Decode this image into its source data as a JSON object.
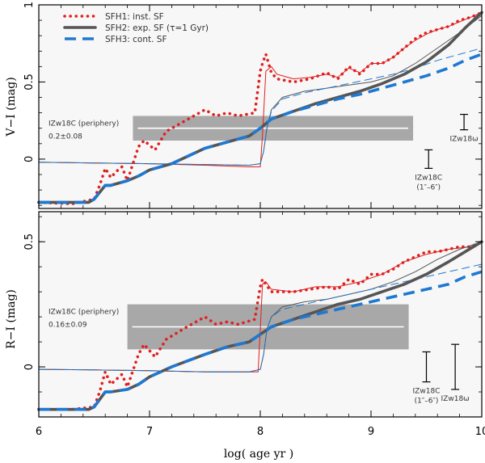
{
  "chart_data": [
    {
      "type": "line",
      "panel": "top",
      "ylabel": "V−I (mag)",
      "xlim": [
        6,
        10
      ],
      "ylim": [
        -0.32,
        1.0
      ],
      "yticks": [
        0,
        0.5,
        1
      ],
      "ytick_labels": [
        "0",
        "0.5",
        "1"
      ],
      "legend": [
        {
          "key": "sfh1",
          "label": "SFH1: inst. SF",
          "color": "#e02020",
          "style": "dotted"
        },
        {
          "key": "sfh2",
          "label": "SFH2: exp. SF (τ=1 Gyr)",
          "color": "#555555",
          "style": "solid"
        },
        {
          "key": "sfh3",
          "label": "SFH3: cont. SF",
          "color": "#1f78d1",
          "style": "dashed"
        }
      ],
      "band": {
        "x": [
          6.85,
          9.38
        ],
        "y": [
          0.12,
          0.28
        ],
        "center": 0.2
      },
      "band_text": [
        "IZw18C (periphery)",
        "0.2±0.08"
      ],
      "errorbars": [
        {
          "label": [
            "IZw18ω"
          ],
          "x": 9.84,
          "y": 0.24,
          "err": 0.05
        },
        {
          "label": [
            "IZw18C",
            "(1″–6″)"
          ],
          "x": 9.52,
          "y": 0.0,
          "err": 0.06
        }
      ],
      "series": [
        {
          "key": "sfh1",
          "color": "#e02020",
          "style": "dots",
          "x": [
            6.0,
            6.3,
            6.5,
            6.55,
            6.6,
            6.65,
            6.7,
            6.75,
            6.8,
            6.9,
            6.95,
            7.05,
            7.15,
            7.3,
            7.5,
            7.6,
            7.7,
            7.8,
            7.95,
            8.0,
            8.02,
            8.05,
            8.1,
            8.15,
            8.3,
            8.45,
            8.6,
            8.7,
            8.8,
            8.9,
            9.0,
            9.1,
            9.2,
            9.3,
            9.4,
            9.5,
            9.6,
            9.7,
            9.8,
            9.9,
            10.0
          ],
          "y": [
            -0.28,
            -0.29,
            -0.26,
            -0.17,
            -0.06,
            -0.12,
            -0.08,
            -0.05,
            -0.14,
            0.08,
            0.12,
            0.06,
            0.18,
            0.24,
            0.32,
            0.28,
            0.3,
            0.28,
            0.3,
            0.57,
            0.62,
            0.68,
            0.56,
            0.52,
            0.5,
            0.52,
            0.56,
            0.52,
            0.6,
            0.55,
            0.62,
            0.62,
            0.66,
            0.72,
            0.78,
            0.82,
            0.84,
            0.86,
            0.9,
            0.92,
            0.95
          ]
        },
        {
          "key": "sfh1_inst",
          "color": "#e02020",
          "style": "thin",
          "x": [
            6.0,
            6.5,
            7.0,
            7.5,
            7.9,
            8.0,
            8.02,
            8.05,
            8.1,
            8.15,
            8.3,
            8.45,
            8.6,
            8.7,
            8.8,
            8.9,
            9.0,
            9.1,
            9.2,
            9.3,
            9.4,
            9.5,
            9.6,
            9.7,
            9.8,
            9.9,
            10.0
          ],
          "y": [
            -0.02,
            -0.025,
            -0.03,
            -0.04,
            -0.05,
            -0.05,
            0.15,
            0.57,
            0.6,
            0.55,
            0.52,
            0.53,
            0.55,
            0.53,
            0.59,
            0.56,
            0.62,
            0.62,
            0.66,
            0.72,
            0.77,
            0.81,
            0.84,
            0.86,
            0.89,
            0.92,
            0.95
          ]
        },
        {
          "key": "sfh2_thin",
          "color": "#555555",
          "style": "thin",
          "x": [
            6.0,
            6.5,
            7.0,
            7.5,
            7.9,
            8.0,
            8.03,
            8.06,
            8.1,
            8.2,
            8.4,
            8.6,
            8.8,
            9.0,
            9.2,
            9.4,
            9.6,
            9.8,
            10.0
          ],
          "y": [
            -0.02,
            -0.025,
            -0.03,
            -0.035,
            -0.04,
            -0.03,
            0.05,
            0.2,
            0.32,
            0.4,
            0.44,
            0.46,
            0.48,
            0.5,
            0.54,
            0.62,
            0.72,
            0.82,
            0.93
          ]
        },
        {
          "key": "sfh3_thin",
          "color": "#1f78d1",
          "style": "thindash",
          "x": [
            6.0,
            6.5,
            7.0,
            7.5,
            7.9,
            8.0,
            8.03,
            8.06,
            8.1,
            8.2,
            8.4,
            8.6,
            8.8,
            9.0,
            9.2,
            9.4,
            9.6,
            9.8,
            10.0
          ],
          "y": [
            -0.02,
            -0.025,
            -0.03,
            -0.035,
            -0.04,
            -0.03,
            0.05,
            0.2,
            0.31,
            0.39,
            0.43,
            0.46,
            0.49,
            0.52,
            0.55,
            0.59,
            0.64,
            0.68,
            0.72
          ]
        },
        {
          "key": "sfh2",
          "color": "#555555",
          "style": "thick",
          "x": [
            6.0,
            6.45,
            6.5,
            6.6,
            6.65,
            6.8,
            6.9,
            7.0,
            7.2,
            7.5,
            7.7,
            7.9,
            8.0,
            8.1,
            8.3,
            8.5,
            8.7,
            8.9,
            9.1,
            9.3,
            9.5,
            9.7,
            9.85,
            10.0
          ],
          "y": [
            -0.28,
            -0.28,
            -0.26,
            -0.17,
            -0.17,
            -0.14,
            -0.11,
            -0.07,
            -0.03,
            0.07,
            0.11,
            0.15,
            0.2,
            0.26,
            0.31,
            0.36,
            0.4,
            0.44,
            0.49,
            0.55,
            0.63,
            0.74,
            0.85,
            0.95
          ]
        },
        {
          "key": "sfh3",
          "color": "#1f78d1",
          "style": "thickdash",
          "x": [
            6.0,
            6.45,
            6.5,
            6.6,
            6.65,
            6.8,
            6.9,
            7.0,
            7.2,
            7.5,
            7.7,
            7.9,
            8.0,
            8.1,
            8.3,
            8.5,
            8.7,
            8.9,
            9.1,
            9.3,
            9.5,
            9.7,
            9.85,
            10.0
          ],
          "y": [
            -0.28,
            -0.28,
            -0.26,
            -0.17,
            -0.17,
            -0.14,
            -0.11,
            -0.07,
            -0.03,
            0.07,
            0.11,
            0.15,
            0.2,
            0.26,
            0.31,
            0.35,
            0.39,
            0.42,
            0.46,
            0.5,
            0.54,
            0.59,
            0.64,
            0.68
          ]
        }
      ]
    },
    {
      "type": "line",
      "panel": "bottom",
      "xlabel": "log( age yr )",
      "ylabel": "R−I (mag)",
      "xlim": [
        6,
        10
      ],
      "ylim": [
        -0.2,
        0.62
      ],
      "xticks": [
        6,
        7,
        8,
        9,
        10
      ],
      "xtick_labels": [
        "6",
        "7",
        "8",
        "9",
        "10"
      ],
      "yticks": [
        0,
        0.5
      ],
      "ytick_labels": [
        "0",
        "0.5"
      ],
      "band": {
        "x": [
          6.8,
          9.34
        ],
        "y": [
          0.07,
          0.25
        ],
        "center": 0.16
      },
      "band_text": [
        "IZw18C (periphery)",
        "0.16±0.09"
      ],
      "errorbars": [
        {
          "label": [
            "IZw18C",
            "(1″–6″)"
          ],
          "x": 9.5,
          "y": 0.0,
          "err": 0.06
        },
        {
          "label": [
            "IZw18ω"
          ],
          "x": 9.76,
          "y": 0.0,
          "err": 0.09
        }
      ],
      "series": [
        {
          "key": "sfh1",
          "color": "#e02020",
          "style": "dots",
          "x": [
            6.0,
            6.3,
            6.5,
            6.55,
            6.6,
            6.65,
            6.7,
            6.75,
            6.8,
            6.9,
            6.95,
            7.05,
            7.15,
            7.3,
            7.5,
            7.6,
            7.7,
            7.8,
            7.95,
            8.0,
            8.02,
            8.05,
            8.1,
            8.15,
            8.3,
            8.45,
            8.6,
            8.7,
            8.8,
            8.9,
            9.0,
            9.1,
            9.2,
            9.3,
            9.4,
            9.5,
            9.6,
            9.7,
            9.8,
            9.9,
            10.0
          ],
          "y": [
            -0.17,
            -0.17,
            -0.16,
            -0.1,
            -0.02,
            -0.07,
            -0.05,
            -0.03,
            -0.08,
            0.05,
            0.09,
            0.04,
            0.11,
            0.15,
            0.2,
            0.17,
            0.18,
            0.17,
            0.19,
            0.32,
            0.35,
            0.33,
            0.3,
            0.3,
            0.3,
            0.31,
            0.32,
            0.31,
            0.35,
            0.33,
            0.37,
            0.37,
            0.39,
            0.42,
            0.44,
            0.46,
            0.46,
            0.47,
            0.48,
            0.48,
            0.5
          ]
        },
        {
          "key": "sfh1_inst",
          "color": "#e02020",
          "style": "thin",
          "x": [
            6.0,
            6.5,
            7.0,
            7.5,
            7.9,
            7.98,
            8.0,
            8.02,
            8.05,
            8.1,
            8.3,
            8.5,
            8.7,
            8.9,
            9.1,
            9.3,
            9.5,
            9.7,
            9.9,
            10.0
          ],
          "y": [
            -0.01,
            -0.012,
            -0.015,
            -0.02,
            -0.02,
            -0.02,
            0.15,
            0.33,
            0.34,
            0.31,
            0.3,
            0.32,
            0.32,
            0.34,
            0.37,
            0.42,
            0.45,
            0.47,
            0.48,
            0.5
          ]
        },
        {
          "key": "sfh2_thin",
          "color": "#555555",
          "style": "thin",
          "x": [
            6.0,
            6.5,
            7.0,
            7.5,
            7.9,
            8.0,
            8.03,
            8.06,
            8.1,
            8.2,
            8.4,
            8.6,
            8.8,
            9.0,
            9.2,
            9.4,
            9.6,
            9.8,
            10.0
          ],
          "y": [
            -0.01,
            -0.012,
            -0.015,
            -0.02,
            -0.02,
            -0.01,
            0.05,
            0.15,
            0.2,
            0.24,
            0.26,
            0.27,
            0.29,
            0.31,
            0.34,
            0.38,
            0.43,
            0.47,
            0.5
          ]
        },
        {
          "key": "sfh3_thin",
          "color": "#1f78d1",
          "style": "thindash",
          "x": [
            6.0,
            6.5,
            7.0,
            7.5,
            7.9,
            8.0,
            8.03,
            8.06,
            8.1,
            8.2,
            8.4,
            8.6,
            8.8,
            9.0,
            9.2,
            9.4,
            9.6,
            9.8,
            10.0
          ],
          "y": [
            -0.01,
            -0.012,
            -0.015,
            -0.02,
            -0.02,
            -0.01,
            0.05,
            0.15,
            0.2,
            0.23,
            0.25,
            0.27,
            0.29,
            0.31,
            0.33,
            0.35,
            0.37,
            0.39,
            0.41
          ]
        },
        {
          "key": "sfh2",
          "color": "#555555",
          "style": "thick",
          "x": [
            6.0,
            6.45,
            6.5,
            6.6,
            6.65,
            6.8,
            6.9,
            7.0,
            7.2,
            7.5,
            7.7,
            7.9,
            8.0,
            8.1,
            8.3,
            8.5,
            8.7,
            8.9,
            9.1,
            9.3,
            9.5,
            9.7,
            9.85,
            10.0
          ],
          "y": [
            -0.17,
            -0.17,
            -0.16,
            -0.1,
            -0.1,
            -0.09,
            -0.07,
            -0.04,
            0.0,
            0.05,
            0.08,
            0.1,
            0.13,
            0.16,
            0.19,
            0.22,
            0.25,
            0.27,
            0.3,
            0.33,
            0.37,
            0.42,
            0.46,
            0.5
          ]
        },
        {
          "key": "sfh3",
          "color": "#1f78d1",
          "style": "thickdash",
          "x": [
            6.0,
            6.45,
            6.5,
            6.6,
            6.65,
            6.8,
            6.9,
            7.0,
            7.2,
            7.5,
            7.7,
            7.9,
            8.0,
            8.1,
            8.3,
            8.5,
            8.7,
            8.9,
            9.1,
            9.3,
            9.5,
            9.7,
            9.85,
            10.0
          ],
          "y": [
            -0.17,
            -0.17,
            -0.16,
            -0.1,
            -0.1,
            -0.09,
            -0.07,
            -0.04,
            0.0,
            0.05,
            0.08,
            0.1,
            0.13,
            0.16,
            0.19,
            0.21,
            0.23,
            0.25,
            0.27,
            0.29,
            0.31,
            0.33,
            0.36,
            0.38
          ]
        }
      ]
    }
  ]
}
